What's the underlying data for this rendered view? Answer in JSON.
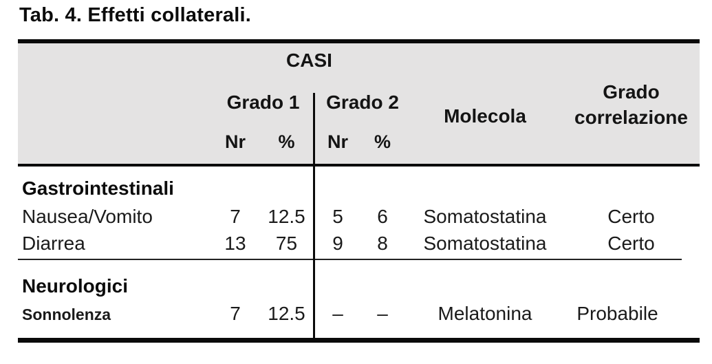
{
  "title": "Tab. 4. Effetti collaterali.",
  "table": {
    "header": {
      "casi": "CASI",
      "grado1": "Grado 1",
      "grado2": "Grado 2",
      "nr1": "Nr",
      "pct1": "%",
      "nr2": "Nr",
      "pct2": "%",
      "molecola": "Molecola",
      "grado_correlazione_line1": "Grado",
      "grado_correlazione_line2": "correlazione"
    },
    "groups": [
      {
        "name": "Gastrointestinali",
        "rows": [
          {
            "label": "Nausea/Vomito",
            "g1_nr": "7",
            "g1_pct": "12.5",
            "g2_nr": "5",
            "g2_pct": "6",
            "molecola": "Somatostatina",
            "correlazione": "Certo"
          },
          {
            "label": "Diarrea",
            "g1_nr": "13",
            "g1_pct": "75",
            "g2_nr": "9",
            "g2_pct": "8",
            "molecola": "Somatostatina",
            "correlazione": "Certo"
          }
        ]
      },
      {
        "name": "Neurologici",
        "rows": [
          {
            "label": "Sonnolenza",
            "g1_nr": "7",
            "g1_pct": "12.5",
            "g2_nr": "–",
            "g2_pct": "–",
            "molecola": "Melatonina",
            "correlazione": "Probabile"
          }
        ]
      }
    ]
  },
  "colors": {
    "header_bg": "#e4e3e3",
    "border": "#0a0a0a",
    "text": "#1a1a1a"
  }
}
